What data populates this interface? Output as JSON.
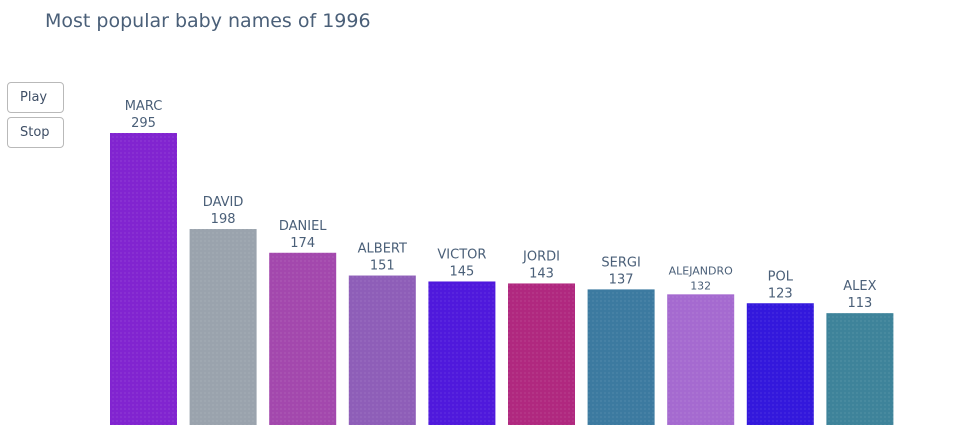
{
  "controls": {
    "play_label": "Play",
    "stop_label": "Stop"
  },
  "chart_data": {
    "type": "bar",
    "title": "Most popular baby names of 1996",
    "categories": [
      "MARC",
      "DAVID",
      "DANIEL",
      "ALBERT",
      "VICTOR",
      "JORDI",
      "SERGI",
      "ALEJANDRO",
      "POL",
      "ALEX"
    ],
    "values": [
      295,
      198,
      174,
      151,
      145,
      143,
      137,
      132,
      123,
      113
    ],
    "colors": [
      "#8124d0",
      "#9aa3ad",
      "#a348ad",
      "#8e5eb8",
      "#4f19dc",
      "#b0287f",
      "#3c7aa0",
      "#a56ad0",
      "#3318dc",
      "#3e839a"
    ],
    "ylim": [
      0,
      295
    ],
    "xlabel": "",
    "ylabel": "",
    "grid": false,
    "legend": "none",
    "data_labels": true
  }
}
